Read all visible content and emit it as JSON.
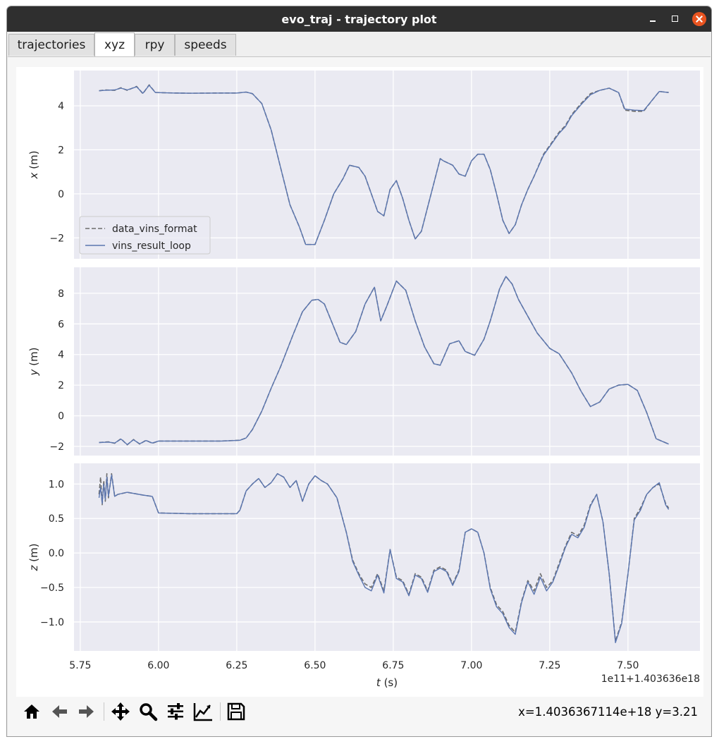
{
  "window": {
    "title": "evo_traj - trajectory plot"
  },
  "tabs": [
    {
      "label": "trajectories",
      "active": false
    },
    {
      "label": "xyz",
      "active": true
    },
    {
      "label": "rpy",
      "active": false
    },
    {
      "label": "speeds",
      "active": false
    }
  ],
  "toolbar": {
    "icons": [
      "home-icon",
      "back-arrow-icon",
      "forward-arrow-icon",
      "pan-icon",
      "zoom-icon",
      "configure-subplots-icon",
      "edit-axis-icon",
      "save-icon"
    ],
    "coordinates": "x=1.4036367114e+18 y=3.21"
  },
  "chart_data": {
    "type": "line",
    "xlabel": "t (s)",
    "x_offset_label": "1e11+1.403636e18",
    "xlim": [
      5.73,
      7.73
    ],
    "xticks": [
      5.75,
      6.0,
      6.25,
      6.5,
      6.75,
      7.0,
      7.25,
      7.5
    ],
    "xtick_labels": [
      "5.75",
      "6.00",
      "6.25",
      "6.50",
      "6.75",
      "7.00",
      "7.25",
      "7.50"
    ],
    "grid": true,
    "legend": {
      "placement": "lower-left",
      "panel": 0
    },
    "series_styles": [
      {
        "name": "data_vins_format",
        "color": "#6c6c6c",
        "dash": "dashed"
      },
      {
        "name": "vins_result_loop",
        "color": "#5b76b0",
        "dash": "solid"
      }
    ],
    "panels": [
      {
        "ylabel": "x (m)",
        "ylim": [
          -2.95,
          5.6
        ],
        "yticks": [
          -2,
          0,
          2,
          4
        ],
        "ytick_labels": [
          "−2",
          "0",
          "2",
          "4"
        ],
        "x": [
          5.81,
          5.83,
          5.86,
          5.88,
          5.9,
          5.93,
          5.95,
          5.97,
          5.99,
          6.05,
          6.1,
          6.2,
          6.25,
          6.28,
          6.3,
          6.33,
          6.36,
          6.39,
          6.42,
          6.45,
          6.47,
          6.5,
          6.53,
          6.56,
          6.59,
          6.61,
          6.64,
          6.66,
          6.68,
          6.7,
          6.72,
          6.74,
          6.76,
          6.78,
          6.8,
          6.82,
          6.84,
          6.86,
          6.88,
          6.9,
          6.91,
          6.94,
          6.96,
          6.98,
          7.0,
          7.02,
          7.04,
          7.06,
          7.08,
          7.1,
          7.12,
          7.14,
          7.16,
          7.18,
          7.2,
          7.23,
          7.25,
          7.28,
          7.3,
          7.32,
          7.35,
          7.38,
          7.41,
          7.44,
          7.47,
          7.49,
          7.52,
          7.55,
          7.58,
          7.6,
          7.63
        ],
        "series": [
          {
            "name": "data_vins_format",
            "values": [
              4.68,
              4.72,
              4.7,
              4.82,
              4.7,
              4.88,
              4.55,
              4.95,
              4.6,
              4.58,
              4.57,
              4.58,
              4.58,
              4.62,
              4.55,
              4.1,
              2.9,
              1.2,
              -0.5,
              -1.5,
              -2.3,
              -2.3,
              -1.2,
              0.0,
              0.7,
              1.3,
              1.2,
              0.8,
              0.0,
              -0.8,
              -1.0,
              0.2,
              0.6,
              -0.2,
              -1.2,
              -2.05,
              -1.7,
              -0.6,
              0.5,
              1.6,
              1.5,
              1.3,
              0.9,
              0.8,
              1.5,
              1.8,
              1.8,
              1.1,
              0.0,
              -1.2,
              -1.8,
              -1.4,
              -0.5,
              0.2,
              0.8,
              1.8,
              2.2,
              2.8,
              3.1,
              3.6,
              4.1,
              4.55,
              4.7,
              4.8,
              4.6,
              3.8,
              3.75,
              3.75,
              4.3,
              4.65,
              4.6
            ]
          },
          {
            "name": "vins_result_loop",
            "values": [
              4.68,
              4.7,
              4.72,
              4.8,
              4.72,
              4.86,
              4.57,
              4.93,
              4.6,
              4.58,
              4.57,
              4.58,
              4.58,
              4.62,
              4.55,
              4.1,
              2.9,
              1.2,
              -0.5,
              -1.5,
              -2.3,
              -2.3,
              -1.2,
              0.0,
              0.7,
              1.3,
              1.2,
              0.8,
              0.0,
              -0.8,
              -1.0,
              0.2,
              0.6,
              -0.2,
              -1.2,
              -2.05,
              -1.7,
              -0.6,
              0.5,
              1.6,
              1.5,
              1.3,
              0.9,
              0.8,
              1.5,
              1.8,
              1.8,
              1.1,
              0.0,
              -1.2,
              -1.8,
              -1.4,
              -0.5,
              0.2,
              0.8,
              1.75,
              2.15,
              2.75,
              3.05,
              3.55,
              4.05,
              4.5,
              4.7,
              4.8,
              4.6,
              3.85,
              3.8,
              3.78,
              4.3,
              4.65,
              4.6
            ]
          }
        ]
      },
      {
        "ylabel": "y (m)",
        "ylim": [
          -2.6,
          9.7
        ],
        "yticks": [
          -2,
          0,
          2,
          4,
          6,
          8
        ],
        "ytick_labels": [
          "−2",
          "0",
          "2",
          "4",
          "6",
          "8"
        ],
        "x": [
          5.81,
          5.84,
          5.86,
          5.88,
          5.9,
          5.92,
          5.94,
          5.96,
          5.98,
          6.0,
          6.1,
          6.2,
          6.26,
          6.28,
          6.3,
          6.33,
          6.36,
          6.39,
          6.43,
          6.46,
          6.49,
          6.51,
          6.53,
          6.56,
          6.58,
          6.6,
          6.63,
          6.66,
          6.69,
          6.71,
          6.73,
          6.76,
          6.79,
          6.82,
          6.85,
          6.88,
          6.9,
          6.93,
          6.96,
          6.98,
          7.01,
          7.04,
          7.06,
          7.09,
          7.11,
          7.13,
          7.15,
          7.18,
          7.21,
          7.25,
          7.28,
          7.32,
          7.35,
          7.38,
          7.41,
          7.44,
          7.47,
          7.5,
          7.53,
          7.56,
          7.59,
          7.63
        ],
        "series": [
          {
            "name": "data_vins_format",
            "values": [
              -1.75,
              -1.7,
              -1.8,
              -1.5,
              -1.9,
              -1.55,
              -1.85,
              -1.6,
              -1.8,
              -1.65,
              -1.65,
              -1.65,
              -1.6,
              -1.45,
              -0.9,
              0.3,
              1.8,
              3.2,
              5.3,
              6.8,
              7.55,
              7.6,
              7.3,
              5.8,
              4.8,
              4.65,
              5.5,
              7.3,
              8.4,
              6.2,
              7.2,
              8.8,
              8.2,
              6.2,
              4.5,
              3.4,
              3.3,
              4.7,
              4.9,
              4.2,
              3.95,
              5.0,
              6.2,
              8.3,
              9.1,
              8.6,
              7.6,
              6.5,
              5.4,
              4.4,
              4.05,
              2.8,
              1.6,
              0.6,
              0.9,
              1.75,
              2.0,
              2.05,
              1.65,
              0.2,
              -1.5,
              -1.85
            ]
          },
          {
            "name": "vins_result_loop",
            "values": [
              -1.75,
              -1.72,
              -1.78,
              -1.52,
              -1.88,
              -1.57,
              -1.83,
              -1.62,
              -1.78,
              -1.65,
              -1.65,
              -1.65,
              -1.6,
              -1.45,
              -0.9,
              0.3,
              1.8,
              3.2,
              5.3,
              6.8,
              7.55,
              7.6,
              7.3,
              5.8,
              4.8,
              4.65,
              5.5,
              7.3,
              8.4,
              6.2,
              7.2,
              8.8,
              8.2,
              6.2,
              4.5,
              3.4,
              3.3,
              4.7,
              4.9,
              4.2,
              3.95,
              5.0,
              6.2,
              8.3,
              9.1,
              8.6,
              7.6,
              6.5,
              5.4,
              4.4,
              4.05,
              2.8,
              1.6,
              0.6,
              0.9,
              1.75,
              2.0,
              2.05,
              1.65,
              0.2,
              -1.5,
              -1.85
            ]
          }
        ]
      },
      {
        "ylabel": "z (m)",
        "ylim": [
          -1.42,
          1.3
        ],
        "yticks": [
          -1.0,
          -0.5,
          0.0,
          0.5,
          1.0
        ],
        "ytick_labels": [
          "−1.0",
          "−0.5",
          "0.0",
          "0.5",
          "1.0"
        ],
        "x": [
          5.81,
          5.815,
          5.82,
          5.825,
          5.83,
          5.835,
          5.84,
          5.85,
          5.86,
          5.87,
          5.9,
          5.95,
          5.98,
          6.0,
          6.1,
          6.2,
          6.25,
          6.26,
          6.28,
          6.3,
          6.32,
          6.34,
          6.36,
          6.38,
          6.4,
          6.42,
          6.44,
          6.46,
          6.48,
          6.5,
          6.52,
          6.54,
          6.57,
          6.6,
          6.62,
          6.64,
          6.66,
          6.68,
          6.7,
          6.72,
          6.74,
          6.76,
          6.78,
          6.8,
          6.82,
          6.84,
          6.86,
          6.88,
          6.9,
          6.92,
          6.94,
          6.96,
          6.98,
          7.0,
          7.02,
          7.04,
          7.06,
          7.08,
          7.1,
          7.12,
          7.14,
          7.16,
          7.18,
          7.2,
          7.22,
          7.24,
          7.26,
          7.28,
          7.3,
          7.32,
          7.34,
          7.36,
          7.38,
          7.4,
          7.42,
          7.44,
          7.46,
          7.48,
          7.5,
          7.52,
          7.54,
          7.56,
          7.58,
          7.6,
          7.62,
          7.63
        ],
        "series": [
          {
            "name": "data_vins_format",
            "values": [
              0.85,
              1.1,
              0.7,
              1.05,
              0.75,
              1.15,
              0.8,
              1.15,
              0.82,
              0.85,
              0.88,
              0.84,
              0.82,
              0.58,
              0.57,
              0.57,
              0.57,
              0.62,
              0.9,
              1.0,
              1.08,
              0.95,
              1.02,
              1.15,
              1.1,
              0.95,
              1.05,
              0.75,
              1.0,
              1.12,
              1.05,
              1.0,
              0.8,
              0.3,
              -0.1,
              -0.3,
              -0.45,
              -0.5,
              -0.3,
              -0.55,
              0.05,
              -0.35,
              -0.4,
              -0.6,
              -0.3,
              -0.35,
              -0.55,
              -0.25,
              -0.2,
              -0.25,
              -0.45,
              -0.25,
              0.3,
              0.35,
              0.3,
              0.0,
              -0.5,
              -0.75,
              -0.85,
              -1.05,
              -1.15,
              -0.7,
              -0.4,
              -0.55,
              -0.3,
              -0.5,
              -0.4,
              -0.15,
              0.1,
              0.3,
              0.25,
              0.4,
              0.7,
              0.85,
              0.45,
              -0.3,
              -1.28,
              -1.0,
              -0.3,
              0.5,
              0.65,
              0.85,
              0.95,
              1.0,
              0.72,
              0.65
            ]
          },
          {
            "name": "vins_result_loop",
            "values": [
              0.8,
              0.95,
              0.72,
              1.0,
              0.78,
              1.1,
              0.82,
              1.13,
              0.82,
              0.85,
              0.88,
              0.84,
              0.82,
              0.58,
              0.57,
              0.57,
              0.57,
              0.62,
              0.9,
              1.0,
              1.08,
              0.95,
              1.02,
              1.15,
              1.1,
              0.95,
              1.05,
              0.75,
              1.0,
              1.12,
              1.05,
              1.0,
              0.8,
              0.3,
              -0.12,
              -0.32,
              -0.5,
              -0.55,
              -0.32,
              -0.58,
              0.05,
              -0.37,
              -0.42,
              -0.62,
              -0.32,
              -0.37,
              -0.57,
              -0.27,
              -0.22,
              -0.27,
              -0.47,
              -0.27,
              0.3,
              0.35,
              0.3,
              0.0,
              -0.52,
              -0.78,
              -0.88,
              -1.08,
              -1.18,
              -0.72,
              -0.42,
              -0.6,
              -0.35,
              -0.55,
              -0.42,
              -0.18,
              0.08,
              0.27,
              0.22,
              0.37,
              0.68,
              0.85,
              0.45,
              -0.3,
              -1.3,
              -1.02,
              -0.3,
              0.48,
              0.62,
              0.85,
              0.95,
              1.02,
              0.7,
              0.63
            ]
          }
        ]
      }
    ]
  }
}
